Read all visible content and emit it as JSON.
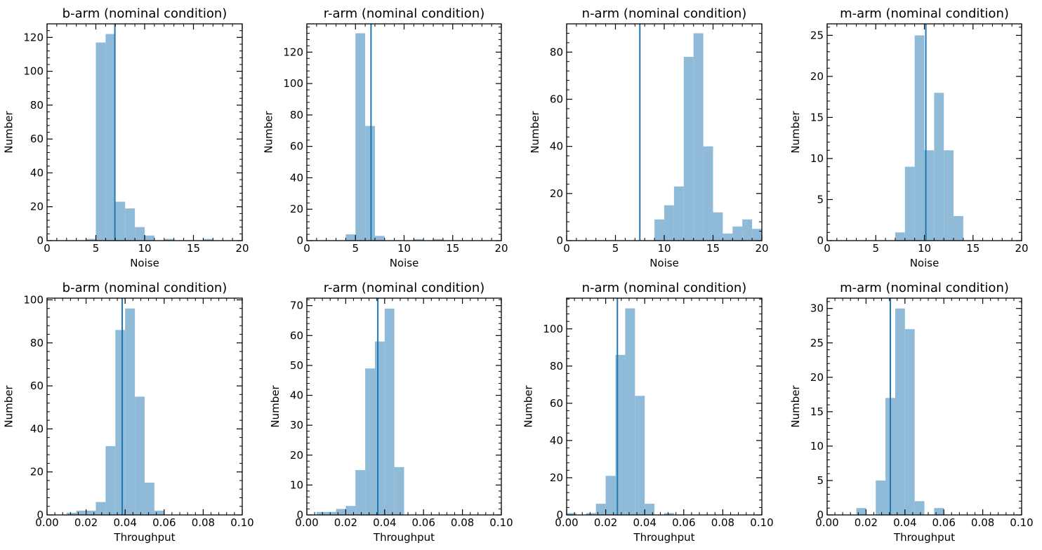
{
  "bar_color": "#8fbbd9",
  "line_color": "#1f77b4",
  "chart_data": [
    {
      "type": "bar",
      "title": "b-arm (nominal condition)",
      "xlabel": "Noise",
      "ylabel": "Number",
      "xlim": [
        0,
        20
      ],
      "ylim": [
        0,
        128
      ],
      "xticks": [
        0,
        5,
        10,
        15,
        20
      ],
      "yticks": [
        0,
        20,
        40,
        60,
        80,
        100,
        120
      ],
      "bin_edges": [
        4,
        5,
        6,
        7,
        8,
        9,
        10,
        11,
        12,
        13,
        14,
        15,
        16,
        17
      ],
      "values": [
        1,
        117,
        122,
        23,
        19,
        8,
        3,
        0,
        1,
        0,
        0,
        0,
        1
      ],
      "vline": 6.95
    },
    {
      "type": "bar",
      "title": "r-arm (nominal condition)",
      "xlabel": "Noise",
      "ylabel": "Number",
      "xlim": [
        0,
        20
      ],
      "ylim": [
        0,
        138
      ],
      "xticks": [
        0,
        5,
        10,
        15,
        20
      ],
      "yticks": [
        0,
        20,
        40,
        60,
        80,
        100,
        120
      ],
      "bin_edges": [
        4,
        5,
        6,
        7,
        8,
        9,
        10,
        11,
        12,
        13,
        14
      ],
      "values": [
        4,
        132,
        73,
        3,
        0,
        0,
        0,
        1,
        0,
        1
      ],
      "vline": 6.6
    },
    {
      "type": "bar",
      "title": "n-arm (nominal condition)",
      "xlabel": "Noise",
      "ylabel": "Number",
      "xlim": [
        0,
        20
      ],
      "ylim": [
        0,
        92
      ],
      "xticks": [
        0,
        5,
        10,
        15,
        20
      ],
      "yticks": [
        0,
        20,
        40,
        60,
        80
      ],
      "bin_edges": [
        9,
        10,
        11,
        12,
        13,
        14,
        15,
        16,
        17,
        18,
        19,
        20
      ],
      "values": [
        9,
        15,
        23,
        78,
        88,
        40,
        12,
        3,
        6,
        9,
        5
      ],
      "vline": 7.5
    },
    {
      "type": "bar",
      "title": "m-arm (nominal condition)",
      "xlabel": "Noise",
      "ylabel": "Number",
      "xlim": [
        0,
        20
      ],
      "ylim": [
        0,
        26.4
      ],
      "xticks": [
        0,
        5,
        10,
        15,
        20
      ],
      "yticks": [
        0,
        5,
        10,
        15,
        20,
        25
      ],
      "bin_edges": [
        7,
        8,
        9,
        10,
        11,
        12,
        13,
        14
      ],
      "values": [
        1,
        9,
        25,
        11,
        18,
        11,
        3
      ],
      "vline": 10.15
    },
    {
      "type": "bar",
      "title": "b-arm (nominal condition)",
      "xlabel": "Throughput",
      "ylabel": "Number",
      "xlim": [
        0,
        0.1
      ],
      "ylim": [
        0,
        100.8
      ],
      "xticks": [
        0,
        0.02,
        0.04,
        0.06,
        0.08,
        0.1
      ],
      "xtick_labels": [
        "0.00",
        "0.02",
        "0.04",
        "0.06",
        "0.08",
        "0.10"
      ],
      "yticks": [
        0,
        20,
        40,
        60,
        80,
        100
      ],
      "bin_edges": [
        0.01,
        0.015,
        0.02,
        0.025,
        0.03,
        0.035,
        0.04,
        0.045,
        0.05,
        0.055,
        0.06
      ],
      "values": [
        1,
        2,
        2,
        6,
        32,
        86,
        96,
        55,
        15,
        2
      ],
      "vline": 0.0385
    },
    {
      "type": "bar",
      "title": "r-arm (nominal condition)",
      "xlabel": "Throughput",
      "ylabel": "Number",
      "xlim": [
        0,
        0.1
      ],
      "ylim": [
        0,
        72.5
      ],
      "xticks": [
        0,
        0.02,
        0.04,
        0.06,
        0.08,
        0.1
      ],
      "xtick_labels": [
        "0.00",
        "0.02",
        "0.04",
        "0.06",
        "0.08",
        "0.10"
      ],
      "yticks": [
        0,
        10,
        20,
        30,
        40,
        50,
        60,
        70
      ],
      "bin_edges": [
        0.005,
        0.01,
        0.015,
        0.02,
        0.025,
        0.03,
        0.035,
        0.04,
        0.045,
        0.05
      ],
      "values": [
        1,
        1,
        2,
        3,
        15,
        49,
        58,
        69,
        16
      ],
      "vline": 0.0365
    },
    {
      "type": "bar",
      "title": "n-arm (nominal condition)",
      "xlabel": "Throughput",
      "ylabel": "Number",
      "xlim": [
        0,
        0.1
      ],
      "ylim": [
        0,
        116.5
      ],
      "xticks": [
        0,
        0.02,
        0.04,
        0.06,
        0.08,
        0.1
      ],
      "xtick_labels": [
        "0.00",
        "0.02",
        "0.04",
        "0.06",
        "0.08",
        "0.10"
      ],
      "yticks": [
        0,
        20,
        40,
        60,
        80,
        100
      ],
      "bin_edges": [
        0,
        0.005,
        0.01,
        0.015,
        0.02,
        0.025,
        0.03,
        0.035,
        0.04,
        0.045,
        0.05,
        0.055
      ],
      "values": [
        1,
        0,
        1,
        6,
        21,
        86,
        111,
        64,
        6,
        0,
        1
      ],
      "vline": 0.026
    },
    {
      "type": "bar",
      "title": "m-arm (nominal condition)",
      "xlabel": "Throughput",
      "ylabel": "Number",
      "xlim": [
        0,
        0.1
      ],
      "ylim": [
        0,
        31.5
      ],
      "xticks": [
        0,
        0.02,
        0.04,
        0.06,
        0.08,
        0.1
      ],
      "xtick_labels": [
        "0.00",
        "0.02",
        "0.04",
        "0.06",
        "0.08",
        "0.10"
      ],
      "yticks": [
        0,
        5,
        10,
        15,
        20,
        25,
        30
      ],
      "bin_edges": [
        0.015,
        0.02,
        0.025,
        0.03,
        0.035,
        0.04,
        0.045,
        0.05,
        0.055,
        0.06
      ],
      "values": [
        1,
        0,
        5,
        17,
        30,
        27,
        2,
        0,
        1
      ],
      "vline": 0.0325
    }
  ]
}
